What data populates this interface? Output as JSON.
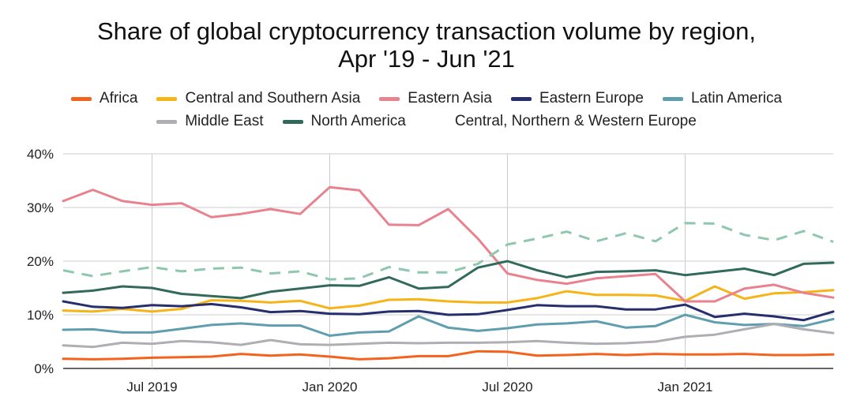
{
  "chart_data": {
    "type": "line",
    "title": "Share of global cryptocurrency transaction volume by region,",
    "subtitle": "Apr '19 - Jun '21",
    "xlabel": "",
    "ylabel": "",
    "x": [
      "2019-04",
      "2019-05",
      "2019-06",
      "2019-07",
      "2019-08",
      "2019-09",
      "2019-10",
      "2019-11",
      "2019-12",
      "2020-01",
      "2020-02",
      "2020-03",
      "2020-04",
      "2020-05",
      "2020-06",
      "2020-07",
      "2020-08",
      "2020-09",
      "2020-10",
      "2020-11",
      "2020-12",
      "2021-01",
      "2021-02",
      "2021-03",
      "2021-04",
      "2021-05",
      "2021-06"
    ],
    "x_ticks": [
      {
        "x": "2019-07",
        "label": "Jul 2019"
      },
      {
        "x": "2020-01",
        "label": "Jan 2020"
      },
      {
        "x": "2020-07",
        "label": "Jul 2020"
      },
      {
        "x": "2021-01",
        "label": "Jan 2021"
      }
    ],
    "y_ticks": [
      {
        "value": 0,
        "label": "0%"
      },
      {
        "value": 10,
        "label": "10%"
      },
      {
        "value": 20,
        "label": "20%"
      },
      {
        "value": 30,
        "label": "30%"
      },
      {
        "value": 40,
        "label": "40%"
      }
    ],
    "ylim": [
      0,
      40
    ],
    "grid": true,
    "legend_position": "top",
    "series": [
      {
        "name": "Africa",
        "color": "#f4631e",
        "dashed": false,
        "values": [
          1.8,
          1.7,
          1.8,
          2.0,
          2.1,
          2.2,
          2.7,
          2.4,
          2.6,
          2.2,
          1.7,
          1.9,
          2.3,
          2.3,
          3.2,
          3.1,
          2.4,
          2.5,
          2.7,
          2.5,
          2.7,
          2.6,
          2.6,
          2.7,
          2.5,
          2.5,
          2.6
        ]
      },
      {
        "name": "Central and Southern Asia",
        "color": "#f5b417",
        "dashed": false,
        "values": [
          10.8,
          10.6,
          11.1,
          10.6,
          11.1,
          12.7,
          12.6,
          12.3,
          12.6,
          11.2,
          11.7,
          12.8,
          12.9,
          12.5,
          12.3,
          12.3,
          13.1,
          14.4,
          13.7,
          13.7,
          13.6,
          12.6,
          15.3,
          13.0,
          14.0,
          14.2,
          14.6
        ]
      },
      {
        "name": "Eastern Asia",
        "color": "#e8828e",
        "dashed": false,
        "values": [
          31.2,
          33.3,
          31.2,
          30.5,
          30.8,
          28.2,
          28.8,
          29.7,
          28.8,
          33.8,
          33.2,
          26.8,
          26.7,
          29.7,
          24.2,
          17.7,
          16.5,
          15.8,
          16.8,
          17.2,
          17.6,
          12.5,
          12.5,
          14.9,
          15.6,
          14.1,
          13.2
        ]
      },
      {
        "name": "Eastern Europe",
        "color": "#262e6d",
        "dashed": false,
        "values": [
          12.5,
          11.5,
          11.3,
          11.8,
          11.6,
          12.0,
          11.4,
          10.5,
          10.7,
          10.2,
          10.1,
          10.6,
          10.7,
          10.0,
          10.1,
          10.9,
          11.8,
          11.6,
          11.6,
          11.0,
          11.0,
          11.9,
          9.6,
          10.2,
          9.7,
          9.0,
          10.6
        ]
      },
      {
        "name": "Latin America",
        "color": "#5e9eae",
        "dashed": false,
        "values": [
          7.2,
          7.3,
          6.7,
          6.7,
          7.4,
          8.1,
          8.4,
          8.0,
          8.0,
          6.1,
          6.7,
          6.9,
          9.7,
          7.6,
          7.0,
          7.5,
          8.2,
          8.4,
          8.8,
          7.6,
          7.9,
          10.0,
          8.6,
          8.1,
          8.3,
          7.9,
          9.2
        ]
      },
      {
        "name": "Middle East",
        "color": "#aeaeb3",
        "dashed": false,
        "values": [
          4.3,
          4.0,
          4.8,
          4.6,
          5.1,
          4.9,
          4.4,
          5.3,
          4.5,
          4.4,
          4.6,
          4.8,
          4.7,
          4.8,
          4.8,
          4.9,
          5.1,
          4.8,
          4.6,
          4.7,
          5.0,
          5.9,
          6.3,
          7.3,
          8.3,
          7.3,
          6.6
        ]
      },
      {
        "name": "North America",
        "color": "#31695a",
        "dashed": false,
        "values": [
          14.1,
          14.5,
          15.3,
          15.0,
          13.9,
          13.5,
          13.1,
          14.3,
          14.9,
          15.5,
          15.4,
          17.0,
          14.9,
          15.2,
          18.8,
          20.0,
          18.3,
          17.0,
          18.0,
          18.1,
          18.3,
          17.4,
          18.0,
          18.6,
          17.4,
          19.5,
          19.7
        ]
      },
      {
        "name": "Central, Northern & Western Europe",
        "color": "#8fc7ad",
        "dashed": true,
        "values": [
          18.3,
          17.2,
          18.1,
          18.9,
          18.1,
          18.6,
          18.8,
          17.7,
          18.1,
          16.6,
          16.8,
          18.9,
          17.9,
          17.9,
          19.5,
          23.1,
          24.2,
          25.5,
          23.7,
          25.2,
          23.7,
          27.1,
          27.0,
          24.9,
          23.9,
          25.6,
          23.6
        ]
      }
    ]
  }
}
